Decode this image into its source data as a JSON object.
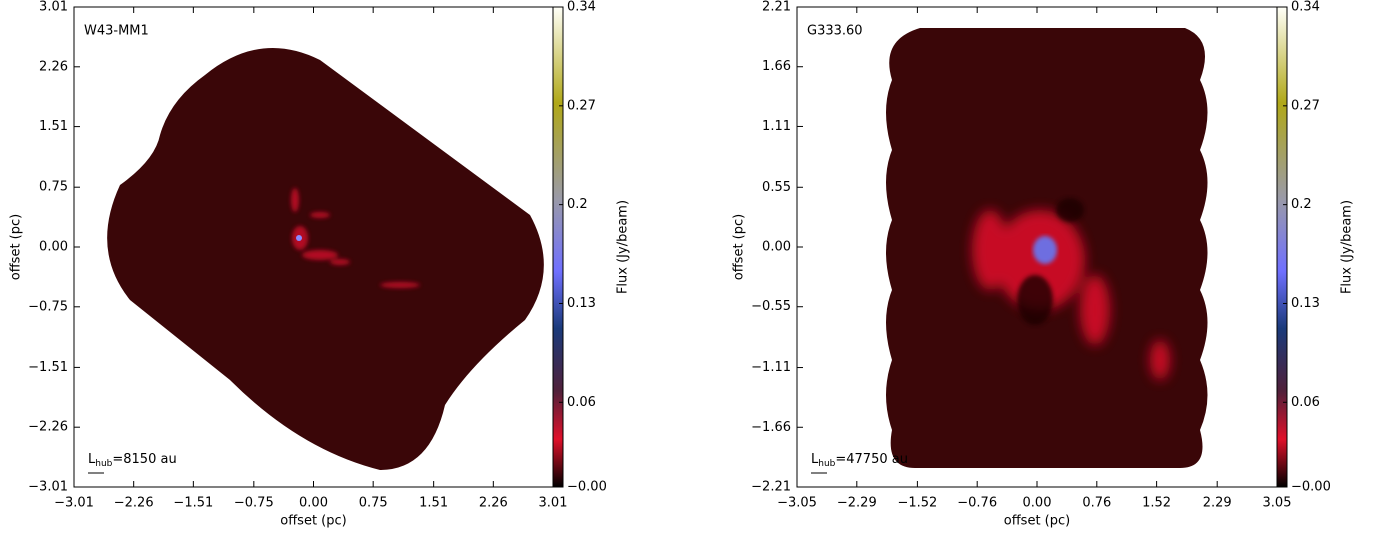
{
  "chart_data": [
    {
      "type": "image",
      "label": "W43-MM1",
      "annotation": {
        "symbol": "L",
        "subscript": "hub",
        "text": "=8150 au"
      },
      "xlabel": "offset (pc)",
      "ylabel": "offset (pc)",
      "xlim": [
        -3.01,
        3.01
      ],
      "xticks": [
        {
          "value": -3.01,
          "label": "−3.01"
        },
        {
          "value": -2.26,
          "label": "−2.26"
        },
        {
          "value": -1.51,
          "label": "−1.51"
        },
        {
          "value": -0.75,
          "label": "−0.75"
        },
        {
          "value": 0,
          "label": "0.00"
        },
        0.75,
        1.51,
        2.26,
        3.01
      ],
      "ylim": [
        -3.01,
        3.01
      ],
      "yticks": [
        {
          "value": -3.01,
          "label": "−3.01"
        },
        {
          "value": -2.26,
          "label": "−2.26"
        },
        {
          "value": -1.51,
          "label": "−1.51"
        },
        {
          "value": -0.75,
          "label": "−0.75"
        },
        {
          "value": 0,
          "label": "0.00"
        },
        0.75,
        1.51,
        2.26,
        3.01
      ],
      "colorbar_label": "Flux (Jy/beam)",
      "clim": [
        0,
        0.34
      ],
      "cticks": [
        {
          "value": 0,
          "label": "−0.00"
        },
        0.06,
        0.13,
        0.2,
        0.27,
        0.34
      ]
    },
    {
      "type": "image",
      "label": "G333.60",
      "annotation": {
        "symbol": "L",
        "subscript": "hub",
        "text": "=47750 au"
      },
      "xlabel": "offset (pc)",
      "ylabel": "offset (pc)",
      "xlim": [
        -3.05,
        3.05
      ],
      "xticks": [
        {
          "value": -3.05,
          "label": "−3.05"
        },
        {
          "value": -2.29,
          "label": "−2.29"
        },
        {
          "value": -1.52,
          "label": "−1.52"
        },
        {
          "value": -0.76,
          "label": "−0.76"
        },
        {
          "value": 0,
          "label": "0.00"
        },
        0.76,
        1.52,
        2.29,
        3.05
      ],
      "ylim": [
        -2.21,
        2.21
      ],
      "yticks": [
        {
          "value": -2.21,
          "label": "−2.21"
        },
        {
          "value": -1.66,
          "label": "−1.66"
        },
        {
          "value": -1.11,
          "label": "−1.11"
        },
        {
          "value": -0.55,
          "label": "−0.55"
        },
        {
          "value": 0,
          "label": "0.00"
        },
        0.55,
        1.11,
        1.66,
        2.21
      ],
      "colorbar_label": "Flux (Jy/beam)",
      "clim": [
        0,
        0.34
      ],
      "cticks": [
        {
          "value": 0,
          "label": "−0.00"
        },
        0.06,
        0.13,
        0.2,
        0.27,
        0.34
      ]
    }
  ]
}
